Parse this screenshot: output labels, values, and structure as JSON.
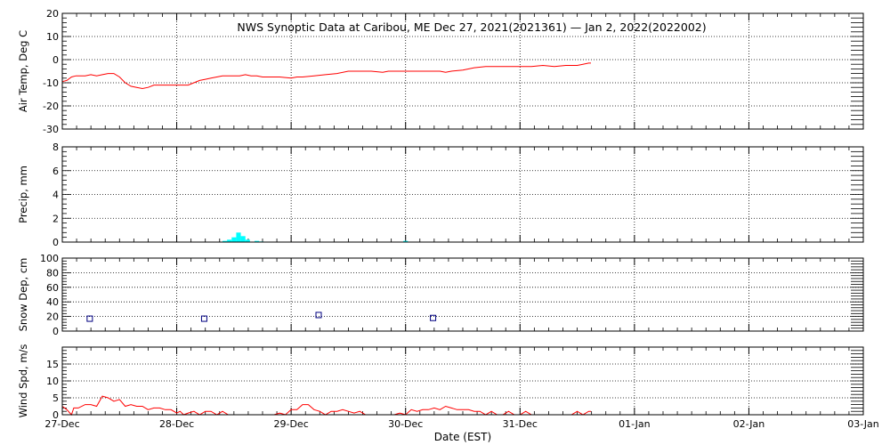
{
  "chart_data": {
    "title": "NWS Synoptic Data at Caribou, ME   Dec 27, 2021(2021361) — Jan  2, 2022(2022002)",
    "xlabel": "Date (EST)",
    "x_ticks": [
      "27-Dec",
      "28-Dec",
      "29-Dec",
      "30-Dec",
      "31-Dec",
      "01-Jan",
      "02-Jan",
      "03-Jan"
    ],
    "x_range_days": [
      0,
      7
    ],
    "panels": [
      {
        "id": "air_temp",
        "type": "line",
        "ylabel": "Air Temp, Deg C",
        "ylim": [
          -30,
          20
        ],
        "yticks": [
          -30,
          -20,
          -10,
          0,
          10,
          20
        ],
        "color": "#ff0000",
        "x": [
          0,
          0.04,
          0.08,
          0.12,
          0.16,
          0.2,
          0.25,
          0.3,
          0.35,
          0.4,
          0.45,
          0.5,
          0.55,
          0.6,
          0.65,
          0.7,
          0.75,
          0.8,
          0.85,
          0.9,
          0.95,
          1.0,
          1.05,
          1.1,
          1.15,
          1.2,
          1.25,
          1.3,
          1.4,
          1.5,
          1.55,
          1.6,
          1.65,
          1.7,
          1.75,
          1.8,
          1.9,
          2.0,
          2.05,
          2.1,
          2.2,
          2.3,
          2.4,
          2.5,
          2.6,
          2.7,
          2.8,
          2.85,
          2.9,
          3.0,
          3.1,
          3.2,
          3.3,
          3.35,
          3.4,
          3.5,
          3.6,
          3.7,
          3.8,
          3.9,
          4.0,
          4.1,
          4.2,
          4.3,
          4.4,
          4.5,
          4.55,
          4.6,
          4.62
        ],
        "y": [
          -9.5,
          -9,
          -7.5,
          -7,
          -7,
          -7,
          -6.5,
          -7,
          -6.5,
          -6,
          -6,
          -7.5,
          -10,
          -11.5,
          -12,
          -12.5,
          -12,
          -11,
          -11,
          -11,
          -11,
          -11,
          -11,
          -11,
          -10,
          -9,
          -8.5,
          -8,
          -7,
          -7,
          -7,
          -6.5,
          -7,
          -7,
          -7.5,
          -7.5,
          -7.5,
          -8,
          -7.5,
          -7.5,
          -7,
          -6.5,
          -6,
          -5,
          -5,
          -5,
          -5.5,
          -5,
          -5,
          -5,
          -5,
          -5,
          -5,
          -5.5,
          -5,
          -4.5,
          -3.5,
          -3,
          -3,
          -3,
          -3,
          -3,
          -2.5,
          -3,
          -2.5,
          -2.5,
          -2,
          -1.5,
          -1.5
        ]
      },
      {
        "id": "precip",
        "type": "bar",
        "ylabel": "Precip, mm",
        "ylim": [
          0,
          8
        ],
        "yticks": [
          0,
          2,
          4,
          6,
          8
        ],
        "color": "#00ffff",
        "bar_width_days": 0.04,
        "x": [
          1.42,
          1.46,
          1.5,
          1.54,
          1.58,
          1.62,
          1.7,
          1.74,
          3.0
        ],
        "y": [
          0.1,
          0.2,
          0.4,
          0.8,
          0.5,
          0.2,
          0.1,
          0.05,
          0.1
        ]
      },
      {
        "id": "snow_depth",
        "type": "scatter",
        "ylabel": "Snow Dep, cm",
        "ylim": [
          0,
          100
        ],
        "yticks": [
          0,
          20,
          40,
          60,
          80,
          100
        ],
        "color": "#000080",
        "x": [
          0.24,
          1.24,
          2.24,
          3.24
        ],
        "y": [
          17,
          17,
          22,
          18
        ]
      },
      {
        "id": "wind_speed",
        "type": "line",
        "ylabel": "Wind Spd, m/s",
        "ylim": [
          0,
          20
        ],
        "yticks": [
          0,
          5,
          10,
          15
        ],
        "color": "#ff0000",
        "x": [
          0,
          0.04,
          0.08,
          0.1,
          0.14,
          0.2,
          0.25,
          0.3,
          0.35,
          0.4,
          0.45,
          0.5,
          0.55,
          0.6,
          0.65,
          0.7,
          0.75,
          0.8,
          0.85,
          0.9,
          0.95,
          1.0,
          1.03,
          1.06,
          1.1,
          1.15,
          1.2,
          1.25,
          1.3,
          1.35,
          1.4,
          1.45,
          1.5,
          1.55,
          1.6,
          1.65,
          1.7,
          1.75,
          1.8,
          1.85,
          1.9,
          1.95,
          2.0,
          2.05,
          2.1,
          2.15,
          2.2,
          2.25,
          2.3,
          2.35,
          2.4,
          2.45,
          2.5,
          2.55,
          2.6,
          2.65,
          2.7,
          2.75,
          2.8,
          2.85,
          2.9,
          2.95,
          3.0,
          3.05,
          3.1,
          3.15,
          3.2,
          3.25,
          3.3,
          3.35,
          3.4,
          3.45,
          3.5,
          3.55,
          3.6,
          3.65,
          3.7,
          3.75,
          3.8,
          3.85,
          3.9,
          3.95,
          4.0,
          4.05,
          4.1,
          4.15,
          4.2,
          4.25,
          4.3,
          4.35,
          4.4,
          4.45,
          4.5,
          4.55,
          4.6,
          4.62
        ],
        "y": [
          2.5,
          1.5,
          0,
          2,
          2,
          3,
          3,
          2.5,
          5.5,
          5,
          4,
          4.5,
          2.5,
          3,
          2.5,
          2.5,
          1.5,
          2,
          2,
          1.5,
          1.5,
          0.5,
          1,
          0,
          0.5,
          1,
          0,
          1,
          1,
          0,
          1,
          0,
          0,
          0,
          0,
          0,
          0,
          0,
          0,
          0,
          0.5,
          0,
          1.5,
          1.5,
          3,
          3,
          1.5,
          1,
          0,
          1,
          1,
          1.5,
          1,
          0.5,
          1,
          0,
          0,
          0,
          0,
          0,
          0,
          0.5,
          0,
          1.5,
          1,
          1.5,
          1.5,
          2,
          1.5,
          2.5,
          2,
          1.5,
          1.5,
          1.5,
          1,
          1,
          0,
          1,
          0,
          0,
          1,
          0,
          0,
          1,
          0,
          0,
          0,
          0,
          0,
          0,
          0,
          0,
          1,
          0,
          1,
          1
        ]
      }
    ]
  }
}
